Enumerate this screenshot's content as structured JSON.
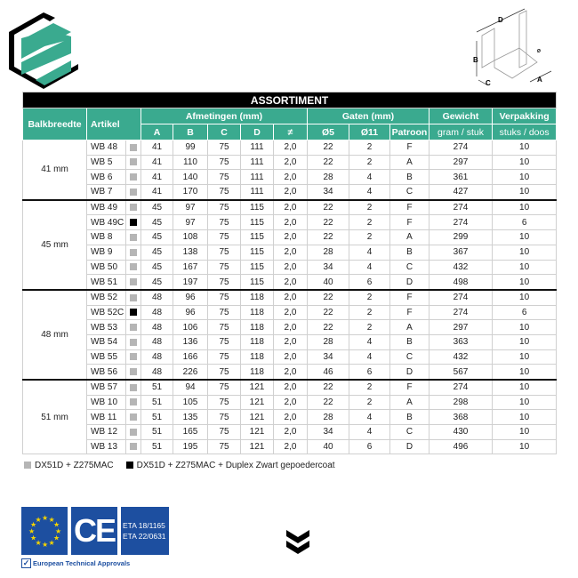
{
  "header": {
    "title": "ASSORTIMENT"
  },
  "columns": {
    "balkbreedte": "Balkbreedte",
    "artikel": "Artikel",
    "afmetingen": "Afmetingen (mm)",
    "gaten": "Gaten (mm)",
    "gewicht": "Gewicht",
    "gewicht_unit": "gram / stuk",
    "verpakking": "Verpakking",
    "verpakking_unit": "stuks / doos",
    "sub": [
      "A",
      "B",
      "C",
      "D",
      "≠",
      "Ø5",
      "Ø11",
      "Patroon"
    ]
  },
  "diagram_labels": [
    "D",
    "B",
    "C",
    "A",
    "Ø"
  ],
  "colors": {
    "teal": "#3aaa8f",
    "grey_finish": "#b5b5b5",
    "black_finish": "#000000",
    "eu_blue": "#1d4fa0"
  },
  "groups": [
    {
      "label": "41 mm",
      "rows": [
        [
          "WB 48",
          "grey",
          "41",
          "99",
          "75",
          "111",
          "2,0",
          "22",
          "2",
          "F",
          "274",
          "10"
        ],
        [
          "WB 5",
          "grey",
          "41",
          "110",
          "75",
          "111",
          "2,0",
          "22",
          "2",
          "A",
          "297",
          "10"
        ],
        [
          "WB 6",
          "grey",
          "41",
          "140",
          "75",
          "111",
          "2,0",
          "28",
          "4",
          "B",
          "361",
          "10"
        ],
        [
          "WB 7",
          "grey",
          "41",
          "170",
          "75",
          "111",
          "2,0",
          "34",
          "4",
          "C",
          "427",
          "10"
        ]
      ]
    },
    {
      "label": "45 mm",
      "rows": [
        [
          "WB 49",
          "grey",
          "45",
          "97",
          "75",
          "115",
          "2,0",
          "22",
          "2",
          "F",
          "274",
          "10"
        ],
        [
          "WB 49C",
          "black",
          "45",
          "97",
          "75",
          "115",
          "2,0",
          "22",
          "2",
          "F",
          "274",
          "6"
        ],
        [
          "WB 8",
          "grey",
          "45",
          "108",
          "75",
          "115",
          "2,0",
          "22",
          "2",
          "A",
          "299",
          "10"
        ],
        [
          "WB 9",
          "grey",
          "45",
          "138",
          "75",
          "115",
          "2,0",
          "28",
          "4",
          "B",
          "367",
          "10"
        ],
        [
          "WB 50",
          "grey",
          "45",
          "167",
          "75",
          "115",
          "2,0",
          "34",
          "4",
          "C",
          "432",
          "10"
        ],
        [
          "WB 51",
          "grey",
          "45",
          "197",
          "75",
          "115",
          "2,0",
          "40",
          "6",
          "D",
          "498",
          "10"
        ]
      ]
    },
    {
      "label": "48 mm",
      "rows": [
        [
          "WB 52",
          "grey",
          "48",
          "96",
          "75",
          "118",
          "2,0",
          "22",
          "2",
          "F",
          "274",
          "10"
        ],
        [
          "WB 52C",
          "black",
          "48",
          "96",
          "75",
          "118",
          "2,0",
          "22",
          "2",
          "F",
          "274",
          "6"
        ],
        [
          "WB 53",
          "grey",
          "48",
          "106",
          "75",
          "118",
          "2,0",
          "22",
          "2",
          "A",
          "297",
          "10"
        ],
        [
          "WB 54",
          "grey",
          "48",
          "136",
          "75",
          "118",
          "2,0",
          "28",
          "4",
          "B",
          "363",
          "10"
        ],
        [
          "WB 55",
          "grey",
          "48",
          "166",
          "75",
          "118",
          "2,0",
          "34",
          "4",
          "C",
          "432",
          "10"
        ],
        [
          "WB 56",
          "grey",
          "48",
          "226",
          "75",
          "118",
          "2,0",
          "46",
          "6",
          "D",
          "567",
          "10"
        ]
      ]
    },
    {
      "label": "51 mm",
      "rows": [
        [
          "WB 57",
          "grey",
          "51",
          "94",
          "75",
          "121",
          "2,0",
          "22",
          "2",
          "F",
          "274",
          "10"
        ],
        [
          "WB 10",
          "grey",
          "51",
          "105",
          "75",
          "121",
          "2,0",
          "22",
          "2",
          "A",
          "298",
          "10"
        ],
        [
          "WB 11",
          "grey",
          "51",
          "135",
          "75",
          "121",
          "2,0",
          "28",
          "4",
          "B",
          "368",
          "10"
        ],
        [
          "WB 12",
          "grey",
          "51",
          "165",
          "75",
          "121",
          "2,0",
          "34",
          "4",
          "C",
          "430",
          "10"
        ],
        [
          "WB 13",
          "grey",
          "51",
          "195",
          "75",
          "121",
          "2,0",
          "40",
          "6",
          "D",
          "496",
          "10"
        ]
      ]
    }
  ],
  "legend": {
    "grey": "DX51D + Z275MAC",
    "black": "DX51D + Z275MAC + Duplex Zwart gepoedercoat"
  },
  "certifications": {
    "eta": [
      "ETA 18/1165",
      "ETA 22/0631"
    ],
    "ce": "CE",
    "label": "European Technical Approvals"
  }
}
